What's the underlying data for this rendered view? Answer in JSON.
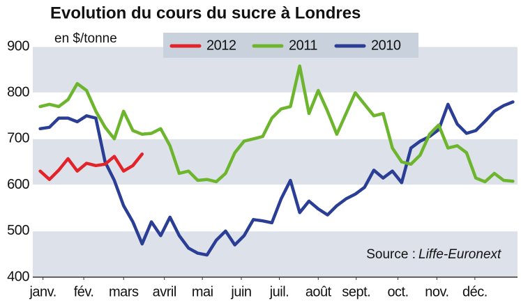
{
  "chart_data": {
    "type": "line",
    "title": "Evolution du cours du sucre à Londres",
    "subtitle": "en $/tonne",
    "source_label": "Source :",
    "source": "Liffe-Euronext",
    "x": [
      1,
      2,
      3,
      4,
      5,
      6,
      7,
      8,
      9,
      10,
      11,
      12,
      13,
      14,
      15,
      16,
      17,
      18,
      19,
      20,
      21,
      22,
      23,
      24,
      25,
      26,
      27,
      28,
      29,
      30,
      31,
      32,
      33,
      34,
      35,
      36,
      37,
      38,
      39,
      40,
      41,
      42,
      43,
      44,
      45,
      46,
      47,
      48,
      49,
      50,
      51,
      52
    ],
    "xlim": [
      0.2,
      52.5
    ],
    "xticks": [
      {
        "value": 1.3,
        "label": "janv."
      },
      {
        "value": 5.7,
        "label": "fév."
      },
      {
        "value": 10,
        "label": "mars"
      },
      {
        "value": 14.4,
        "label": "avril"
      },
      {
        "value": 18.5,
        "label": "mai"
      },
      {
        "value": 22.7,
        "label": "juin"
      },
      {
        "value": 26.8,
        "label": "juil."
      },
      {
        "value": 31,
        "label": "août"
      },
      {
        "value": 35.1,
        "label": "sept."
      },
      {
        "value": 39.6,
        "label": "oct."
      },
      {
        "value": 43.8,
        "label": "nov."
      },
      {
        "value": 47.9,
        "label": "déc."
      }
    ],
    "ylim": [
      400,
      900
    ],
    "yticks": [
      400,
      500,
      600,
      700,
      800,
      900
    ],
    "bands": true,
    "legend": "top",
    "series": [
      {
        "name": "2012",
        "color": "#e2232a",
        "values": [
          630,
          612,
          632,
          657,
          630,
          647,
          642,
          645,
          662,
          630,
          642,
          667,
          null,
          null,
          null,
          null,
          null,
          null,
          null,
          null,
          null,
          null,
          null,
          null,
          null,
          null,
          null,
          null,
          null,
          null,
          null,
          null,
          null,
          null,
          null,
          null,
          null,
          null,
          null,
          null,
          null,
          null,
          null,
          null,
          null,
          null,
          null,
          null,
          null,
          null,
          null,
          null
        ]
      },
      {
        "name": "2011",
        "color": "#6cb52d",
        "values": [
          770,
          775,
          770,
          785,
          820,
          805,
          760,
          725,
          700,
          760,
          718,
          710,
          712,
          722,
          685,
          625,
          630,
          610,
          612,
          607,
          625,
          670,
          695,
          700,
          705,
          745,
          765,
          770,
          858,
          755,
          805,
          760,
          710,
          755,
          800,
          775,
          750,
          755,
          680,
          650,
          645,
          665,
          710,
          730,
          680,
          685,
          670,
          615,
          607,
          625,
          610,
          608
        ]
      },
      {
        "name": "2010",
        "color": "#2b3e96",
        "values": [
          722,
          725,
          745,
          745,
          737,
          750,
          745,
          650,
          610,
          555,
          520,
          472,
          520,
          490,
          530,
          490,
          463,
          452,
          448,
          480,
          500,
          470,
          490,
          525,
          522,
          518,
          570,
          610,
          540,
          565,
          548,
          535,
          555,
          570,
          580,
          595,
          632,
          615,
          630,
          605,
          680,
          695,
          705,
          720,
          775,
          732,
          712,
          718,
          738,
          760,
          772,
          780
        ]
      }
    ]
  }
}
